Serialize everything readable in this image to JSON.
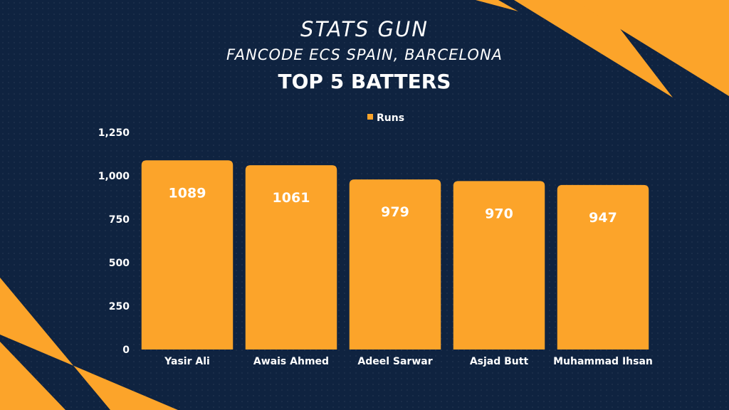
{
  "header": {
    "brand": "STATS GUN",
    "subtitle": "FANCODE ECS SPAIN, BARCELONA"
  },
  "colors": {
    "background": "#0f2340",
    "accent": "#fca42a",
    "text": "#ffffff"
  },
  "chart_data": {
    "type": "bar",
    "title": "TOP 5 BATTERS",
    "legend": {
      "labels": [
        "Runs"
      ],
      "position": "top-center"
    },
    "categories": [
      "Yasir Ali",
      "Awais Ahmed",
      "Adeel Sarwar",
      "Asjad Butt",
      "Muhammad Ihsan"
    ],
    "series": [
      {
        "name": "Runs",
        "values": [
          1089,
          1061,
          979,
          970,
          947
        ]
      }
    ],
    "data_labels": [
      "1089",
      "1061",
      "979",
      "970",
      "947"
    ],
    "y_ticks": [
      "0",
      "250",
      "500",
      "750",
      "1,000",
      "1,250"
    ],
    "ylim": [
      0,
      1250
    ],
    "grid": false
  }
}
